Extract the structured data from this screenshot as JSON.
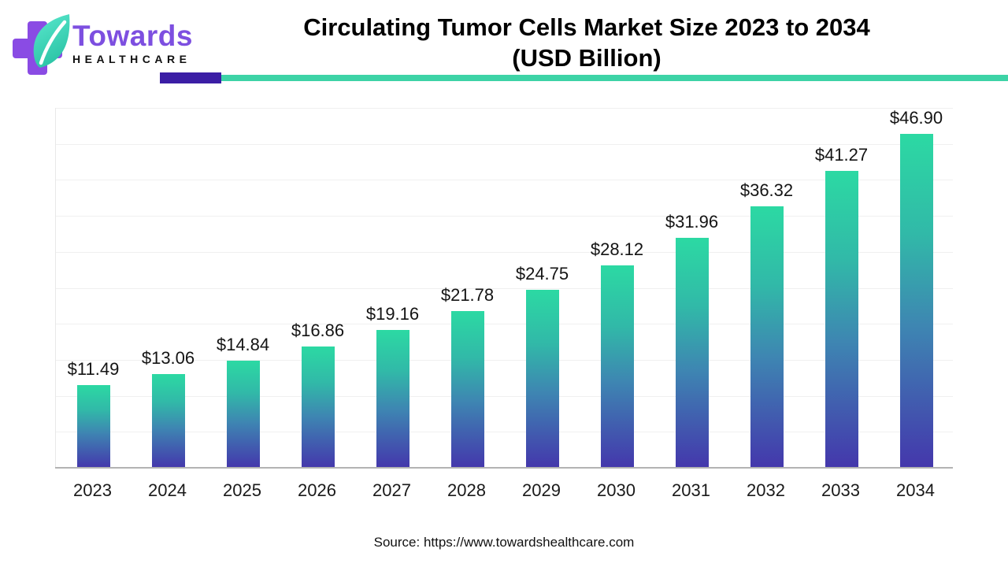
{
  "header": {
    "brand_name": "Towards",
    "brand_subname": "HEALTHCARE",
    "title_line1": "Circulating Tumor Cells Market Size 2023 to 2034",
    "title_line2": "(USD Billion)"
  },
  "colors": {
    "divider_purple": "#3B1EA5",
    "divider_teal": "#3DD3A6",
    "logo_purple": "#8A4BE4",
    "leaf_teal_light": "#5BE9CE",
    "leaf_teal_dark": "#2CC4A6",
    "bar_top": "#2CD9A3",
    "bar_mid1": "#31B9A8",
    "bar_mid2": "#3E85B2",
    "bar_bottom": "#4437AC",
    "gridline": "#f0f0f0",
    "axis_line": "#b3b3b3"
  },
  "chart_data": {
    "type": "bar",
    "title": "Circulating Tumor Cells Market Size 2023 to 2034 (USD Billion)",
    "categories": [
      "2023",
      "2024",
      "2025",
      "2026",
      "2027",
      "2028",
      "2029",
      "2030",
      "2031",
      "2032",
      "2033",
      "2034"
    ],
    "values": [
      11.49,
      13.06,
      14.84,
      16.86,
      19.16,
      21.78,
      24.75,
      28.12,
      31.96,
      36.32,
      41.27,
      46.9
    ],
    "value_labels": [
      "$11.49",
      "$13.06",
      "$14.84",
      "$16.86",
      "$19.16",
      "$21.78",
      "$24.75",
      "$28.12",
      "$31.96",
      "$36.32",
      "$41.27",
      "$46.90"
    ],
    "xlabel": "",
    "ylabel": "",
    "ylim": [
      0,
      50
    ],
    "gridline_step": 5,
    "grid": true,
    "legend": false
  },
  "footer": {
    "source": "Source: https://www.towardshealthcare.com"
  }
}
